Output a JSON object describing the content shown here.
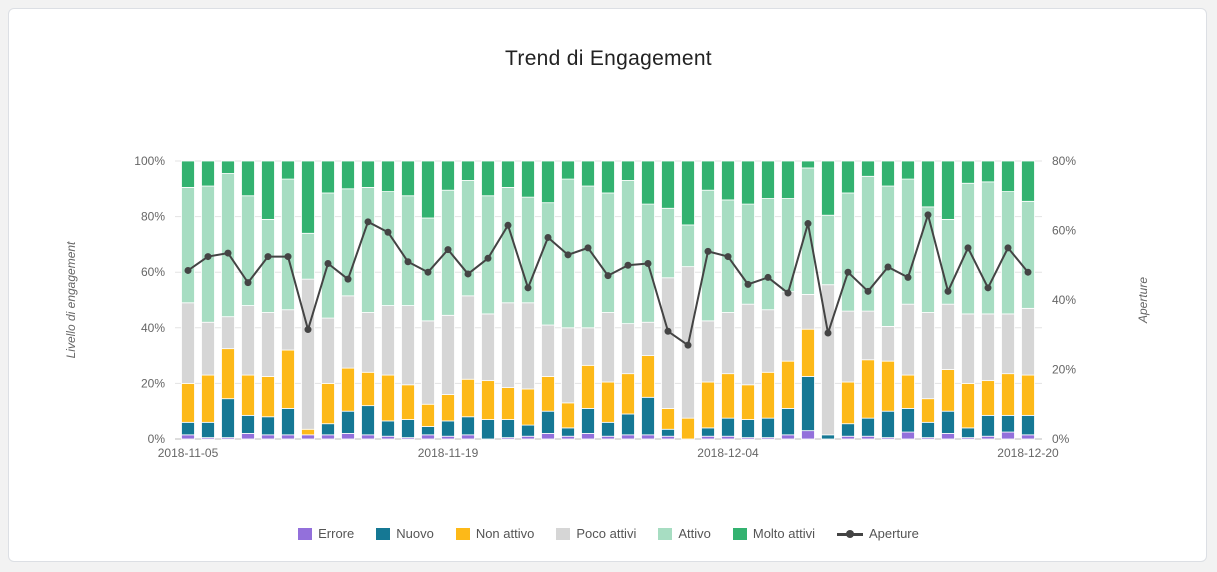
{
  "card": {
    "title": "Trend di Engagement"
  },
  "chart_data": {
    "type": "bar",
    "stacked": true,
    "title": "Trend di Engagement",
    "xlabel": "",
    "ylabel": "Livello di engagement",
    "y2label": "Aperture",
    "ylim": [
      0,
      100
    ],
    "y2lim": [
      0,
      80
    ],
    "yticks": [
      "0%",
      "20%",
      "40%",
      "60%",
      "80%",
      "100%"
    ],
    "y2ticks": [
      "0%",
      "20%",
      "40%",
      "60%",
      "80%"
    ],
    "x_tick_labels": [
      {
        "index": 0,
        "label": "2018-11-05"
      },
      {
        "index": 13,
        "label": "2018-11-19"
      },
      {
        "index": 27,
        "label": "2018-12-04"
      },
      {
        "index": 42,
        "label": "2018-12-20"
      }
    ],
    "grid": true,
    "legend_position": "bottom",
    "bar_count": 43,
    "series": [
      {
        "name": "Errore",
        "color": "#9370db",
        "values": [
          1.5,
          0.5,
          0.5,
          2,
          1.5,
          1.5,
          1.5,
          1.5,
          2,
          1.5,
          1,
          0.5,
          1.5,
          1,
          1.5,
          0,
          0.5,
          1,
          2,
          1,
          2,
          1,
          1.5,
          1.5,
          1,
          0,
          1,
          1,
          0.5,
          0.5,
          1.5,
          3,
          0,
          1,
          1,
          0.5,
          2.5,
          0.5,
          2,
          0.5,
          1,
          2.5,
          1.5
        ]
      },
      {
        "name": "Nuovo",
        "color": "#157894",
        "values": [
          4.5,
          5.5,
          14,
          6.5,
          6.5,
          9.5,
          0,
          4,
          8,
          10.5,
          5.5,
          6.5,
          3,
          5.5,
          6.5,
          7,
          6.5,
          4,
          8,
          3,
          9,
          5,
          7.5,
          13.5,
          2.5,
          0,
          3,
          6.5,
          6.5,
          7,
          9.5,
          19.5,
          1.5,
          4.5,
          6.5,
          9.5,
          8.5,
          5.5,
          8,
          3.5,
          7.5,
          6,
          7
        ]
      },
      {
        "name": "Non attivo",
        "color": "#fdb918",
        "values": [
          14,
          17,
          18,
          14.5,
          14.5,
          21,
          2,
          14.5,
          15.5,
          12,
          16.5,
          12.5,
          8,
          9.5,
          13.5,
          14,
          11.5,
          13,
          12.5,
          9,
          15.5,
          14.5,
          14.5,
          15,
          7.5,
          7.5,
          16.5,
          16,
          12.5,
          16.5,
          17,
          17,
          0,
          15,
          21,
          18,
          12,
          8.5,
          15,
          16,
          12.5,
          15,
          14.5
        ]
      },
      {
        "name": "Poco attivi",
        "color": "#d6d6d6",
        "values": [
          29,
          19,
          11.5,
          25,
          23,
          14.5,
          54,
          23.5,
          26,
          21.5,
          25,
          28.5,
          30,
          28.5,
          30,
          24,
          30.5,
          31,
          18.5,
          27,
          13.5,
          25,
          18,
          12,
          47,
          54.5,
          22,
          22,
          29,
          22.5,
          25,
          12.5,
          54,
          25.5,
          17.5,
          12.5,
          25.5,
          31,
          23.5,
          25,
          24,
          21.5,
          24
        ]
      },
      {
        "name": "Attivo",
        "color": "#a7ddc2",
        "values": [
          41.5,
          49,
          51.5,
          39.5,
          33.5,
          47,
          16.5,
          45,
          38.5,
          45,
          41,
          39.5,
          37,
          45,
          41.5,
          42.5,
          41.5,
          38,
          44,
          53.5,
          51,
          43,
          51.5,
          42.5,
          25,
          15,
          47,
          40.5,
          36,
          40,
          33.5,
          45.5,
          25,
          42.5,
          48.5,
          50.5,
          45,
          38,
          30.5,
          47,
          47.5,
          44,
          38.5
        ]
      },
      {
        "name": "Molto attivi",
        "color": "#33b270",
        "values": [
          9.5,
          9,
          4.5,
          12.5,
          21,
          6.5,
          26,
          11.5,
          10,
          9.5,
          11,
          12.5,
          20.5,
          10.5,
          7,
          12.5,
          9.5,
          13,
          15,
          6.5,
          9,
          11.5,
          7,
          15.5,
          17,
          23,
          10.5,
          14,
          15.5,
          13.5,
          13.5,
          2.5,
          19.5,
          11.5,
          5.5,
          9,
          6.5,
          16.5,
          21,
          8,
          7.5,
          11,
          14.5
        ]
      }
    ],
    "line_series": {
      "name": "Aperture",
      "color": "#444444",
      "axis": "right",
      "values": [
        48.5,
        52.5,
        53.5,
        45,
        52.5,
        52.5,
        31.5,
        50.5,
        46,
        62.5,
        59.5,
        51,
        48,
        54.5,
        47.5,
        52,
        61.5,
        43.5,
        58,
        53,
        55,
        47,
        50,
        50.5,
        31,
        27,
        54,
        52.5,
        44.5,
        46.5,
        42,
        62,
        30.5,
        48,
        42.5,
        49.5,
        46.5,
        64.5,
        42.5,
        55,
        43.5,
        55,
        48
      ]
    }
  },
  "legend": {
    "items": [
      {
        "label": "Errore",
        "color": "#9370db"
      },
      {
        "label": "Nuovo",
        "color": "#157894"
      },
      {
        "label": "Non attivo",
        "color": "#fdb918"
      },
      {
        "label": "Poco attivi",
        "color": "#d6d6d6"
      },
      {
        "label": "Attivo",
        "color": "#a7ddc2"
      },
      {
        "label": "Molto attivi",
        "color": "#33b270"
      },
      {
        "label": "Aperture",
        "color": "#444444"
      }
    ]
  }
}
